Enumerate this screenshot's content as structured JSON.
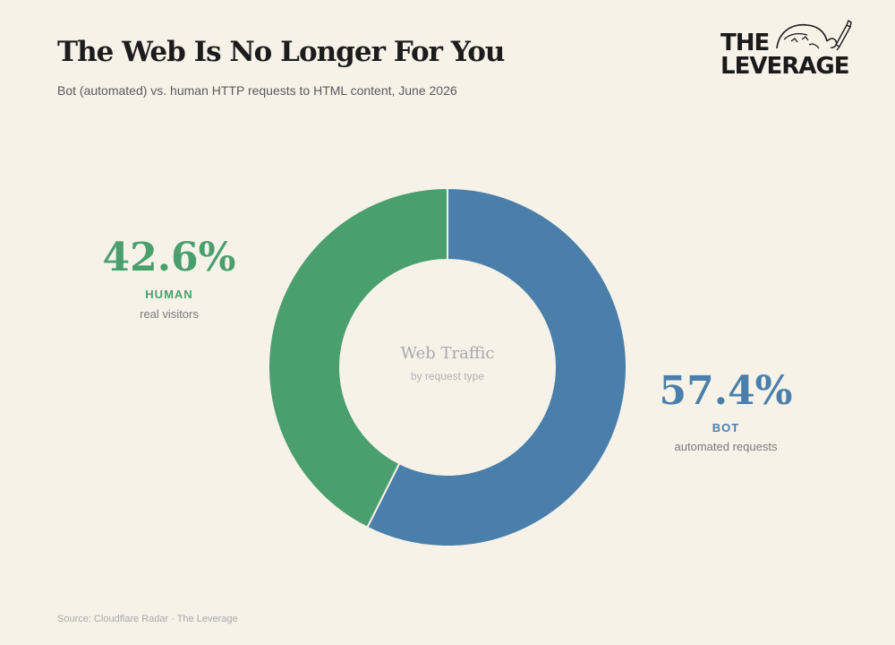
{
  "header": {
    "title": "The Web Is No Longer For You",
    "subtitle": "Bot (automated) vs. human HTTP requests to HTML content, June 2026"
  },
  "brand": {
    "line1": "THE",
    "line2": "LEVERAGE",
    "icon": "sketch-face-with-pen-icon"
  },
  "center": {
    "title": "Web Traffic",
    "subtitle": "by request type"
  },
  "labels": {
    "human": {
      "percent": "42.6%",
      "category": "HUMAN",
      "description": "real visitors"
    },
    "bot": {
      "percent": "57.4%",
      "category": "BOT",
      "description": "automated requests"
    }
  },
  "footer": {
    "source": "Source: Cloudflare Radar · The Leverage"
  },
  "colors": {
    "background": "#f7f2e8",
    "bot": "#4a7fab",
    "human": "#4a9f6e",
    "separator": "#f7f2e8"
  },
  "chart_data": {
    "type": "pie",
    "donut": true,
    "title": "Web Traffic",
    "subtitle": "by request type",
    "categories": [
      "BOT",
      "HUMAN"
    ],
    "values": [
      57.4,
      42.6
    ],
    "unit": "%",
    "colors": [
      "#4a7fab",
      "#4a9f6e"
    ],
    "start_angle_deg": 0,
    "direction": "clockwise"
  }
}
